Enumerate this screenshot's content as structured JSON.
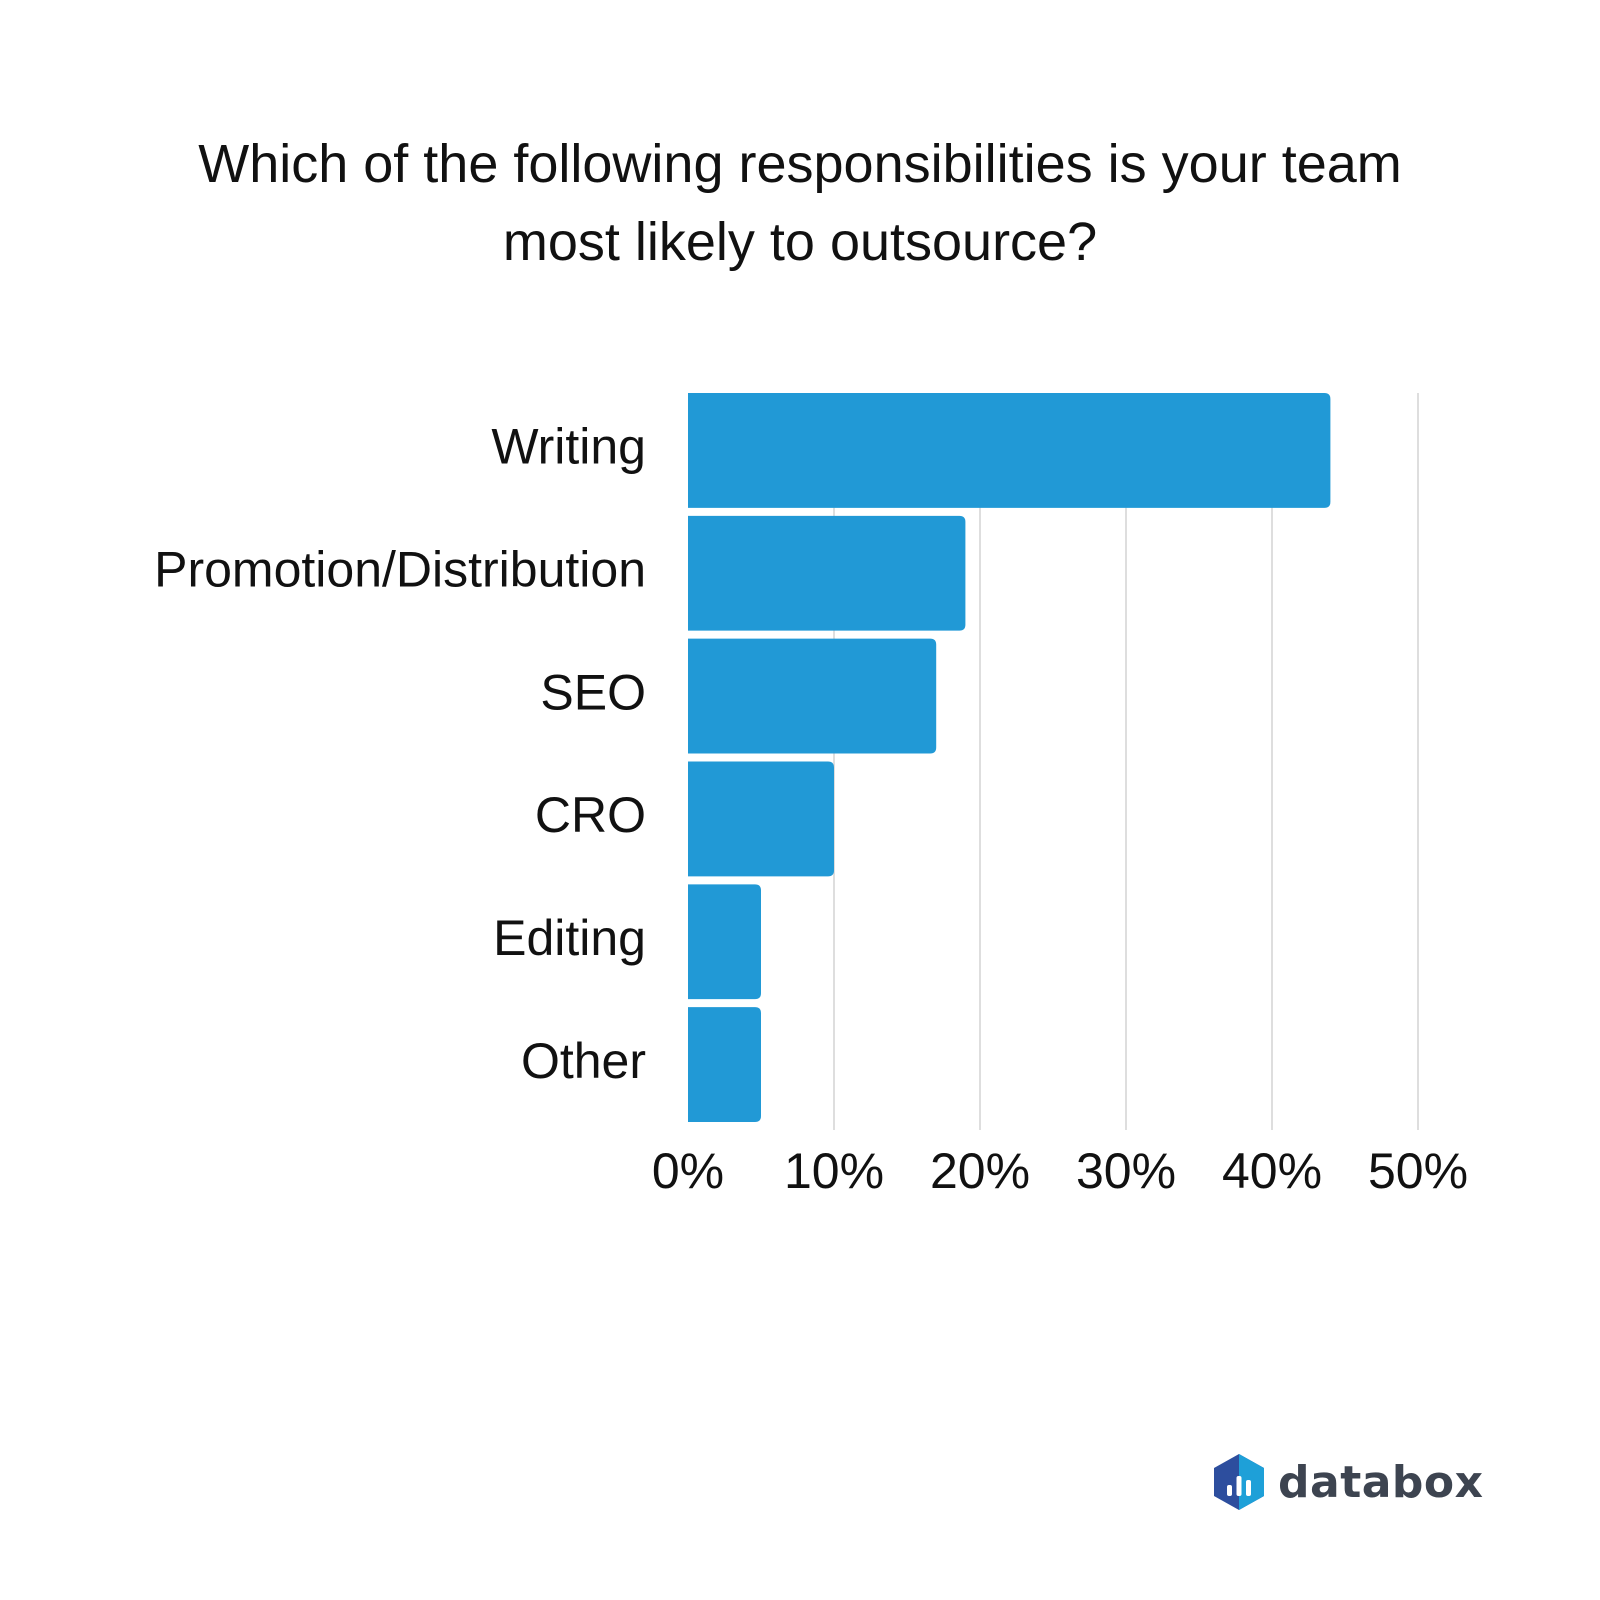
{
  "title_lines": [
    "Which of the following responsibilities is your team",
    "most likely to outsource?"
  ],
  "brand": {
    "name": "databox"
  },
  "colors": {
    "bar": "#2199d6",
    "grid": "#d4d4d4",
    "text": "#111111",
    "brand_text": "#3d4450",
    "logo_dark": "#2d4e9e",
    "logo_light": "#1ea0d8"
  },
  "chart_data": {
    "type": "bar",
    "orientation": "horizontal",
    "categories": [
      "Writing",
      "Promotion/Distribution",
      "SEO",
      "CRO",
      "Editing",
      "Other"
    ],
    "values": [
      44,
      19,
      17,
      10,
      5,
      5
    ],
    "unit": "%",
    "xlim": [
      0,
      50
    ],
    "xticks": [
      "0%",
      "10%",
      "20%",
      "30%",
      "40%",
      "50%"
    ],
    "xtick_values": [
      0,
      10,
      20,
      30,
      40,
      50
    ],
    "grid": true
  }
}
